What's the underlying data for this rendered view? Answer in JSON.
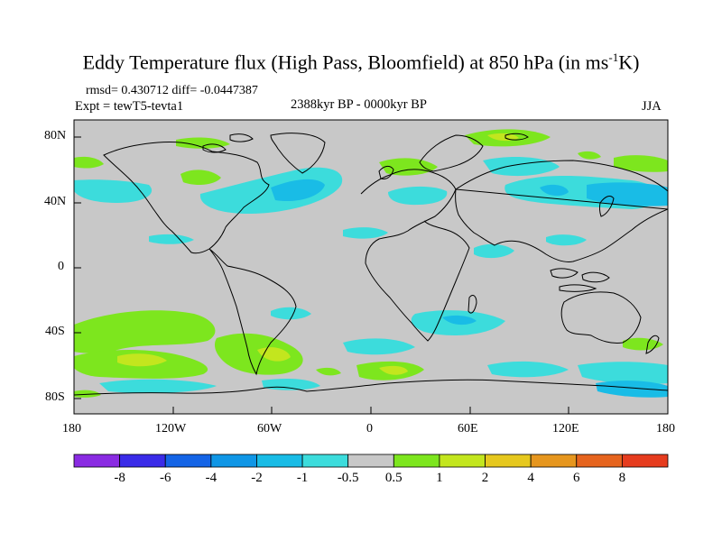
{
  "title": {
    "main": "Eddy Temperature flux (High Pass, Bloomfield) at 850 hPa (in ms",
    "sup": "-1",
    "end": "K)"
  },
  "subtitle": {
    "stats": "rmsd= 0.430712 diff= -0.0447387",
    "experiment": "Expt = tewT5-tevta1",
    "period": "2388kyr BP - 0000kyr BP",
    "season": "JJA"
  },
  "axes": {
    "y_ticks": [
      "80N",
      "40N",
      "0",
      "40S",
      "80S"
    ],
    "x_ticks": [
      "180",
      "120W",
      "60W",
      "0",
      "60E",
      "120E",
      "180"
    ]
  },
  "colorbar": {
    "labels": [
      "-8",
      "-6",
      "-4",
      "-2",
      "-1",
      "-0.5",
      "0.5",
      "1",
      "2",
      "4",
      "6",
      "8"
    ],
    "colors": [
      "#8a2be2",
      "#3a2be8",
      "#1464e6",
      "#0f96e6",
      "#19bce6",
      "#3cdcdc",
      "#c8c8c8",
      "#7de61e",
      "#c3e61e",
      "#e6c81e",
      "#e6961e",
      "#e6641e",
      "#e63c1e"
    ]
  },
  "colors": {
    "land_background": "#c8c8c8",
    "coast": "#000000"
  }
}
